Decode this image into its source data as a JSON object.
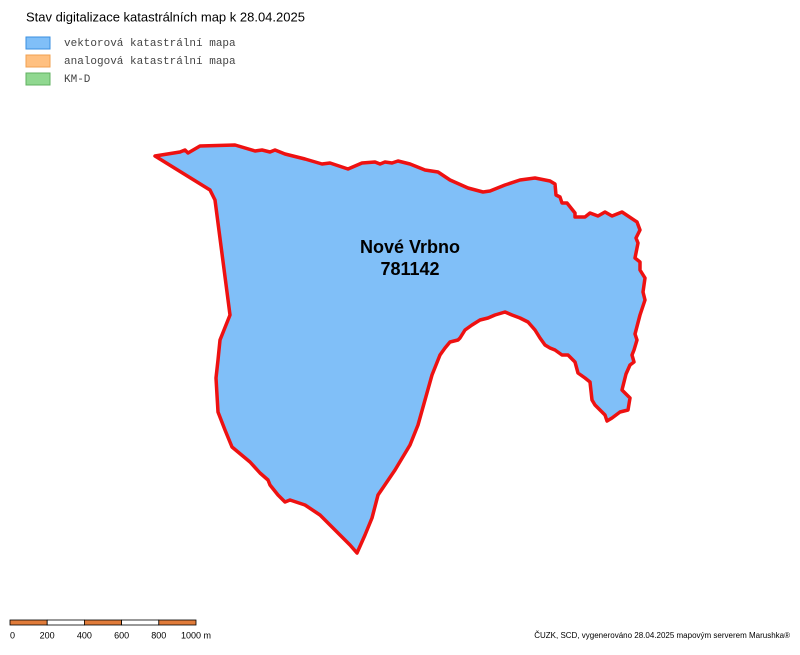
{
  "header": {
    "title": "Stav digitalizace katastrálních map k 28.04.2025"
  },
  "legend": {
    "items": [
      {
        "label": "vektorová katastrální mapa",
        "color": "#80bff8",
        "border": "#3a8fe0"
      },
      {
        "label": "analogová katastrální mapa",
        "color": "#ffc080",
        "border": "#f0a050"
      },
      {
        "label": "KM-D",
        "color": "#90d890",
        "border": "#60b060"
      }
    ]
  },
  "area": {
    "name": "Nové Vrbno",
    "code": "781142"
  },
  "scale_bar": {
    "labels": [
      "0",
      "200",
      "400",
      "600",
      "800",
      "1000 m"
    ]
  },
  "footer": {
    "credit": "ČUZK, SCD, vygenerováno 28.04.2025 mapovým serverem Marushka®"
  }
}
